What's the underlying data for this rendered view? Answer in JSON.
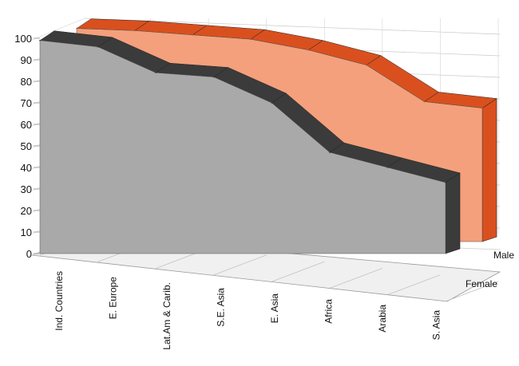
{
  "chart_data": {
    "type": "area",
    "categories": [
      "Ind. Countries",
      "E. Europe",
      "Lat.Am & Carib.",
      "S.E. Asia",
      "E. Asia",
      "Africa",
      "Arabia",
      "S. Asia"
    ],
    "series": [
      {
        "name": "Male",
        "values": [
          99,
          98,
          96,
          94,
          89,
          82,
          65,
          62
        ]
      },
      {
        "name": "Female",
        "values": [
          99,
          96,
          84,
          82,
          70,
          47,
          40,
          33
        ]
      }
    ],
    "ylim": [
      0,
      100
    ],
    "yticks": [
      0,
      10,
      20,
      30,
      40,
      50,
      60,
      70,
      80,
      90,
      100
    ],
    "grid": true,
    "style": "3d ribbon",
    "colors": {
      "Male": {
        "face": "#f4a07c",
        "top": "#d9501e",
        "side": "#d9501e"
      },
      "Female": {
        "face": "#a9a9a9",
        "top": "#3b3b3b",
        "side": "#3b3b3b"
      }
    }
  }
}
